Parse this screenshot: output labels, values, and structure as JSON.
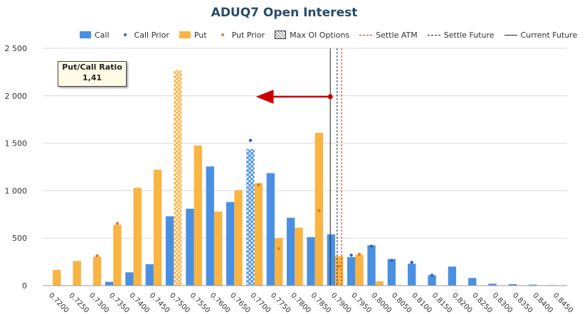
{
  "chart_data": {
    "type": "bar",
    "title": "ADUQ7 Open Interest",
    "categories": [
      "0.7200",
      "0.7250",
      "0.7300",
      "0.7350",
      "0.7400",
      "0.7450",
      "0.7500",
      "0.7550",
      "0.7600",
      "0.7650",
      "0.7700",
      "0.7750",
      "0.7800",
      "0.7850",
      "0.7900",
      "0.7950",
      "0.8000",
      "0.8050",
      "0.8100",
      "0.8150",
      "0.8200",
      "0.8250",
      "0.8300",
      "0.8350",
      "0.8400",
      "0.8450"
    ],
    "ylim": [
      0,
      2500
    ],
    "yticks": [
      0,
      500,
      1000,
      1500,
      2000,
      2500
    ],
    "ytick_labels": [
      "0",
      "500",
      "1 000",
      "1 500",
      "2 000",
      "2 500"
    ],
    "grid": true,
    "series": [
      {
        "name": "Call",
        "kind": "bar",
        "color": "#4a90e2",
        "values": [
          0,
          0,
          0,
          40,
          140,
          225,
          730,
          810,
          1255,
          880,
          1440,
          1185,
          715,
          510,
          540,
          300,
          425,
          280,
          230,
          110,
          200,
          80,
          20,
          15,
          10,
          5
        ]
      },
      {
        "name": "Call Prior",
        "kind": "dot",
        "color": "#2a63c5",
        "values": [
          null,
          null,
          null,
          null,
          null,
          null,
          null,
          null,
          null,
          null,
          1530,
          null,
          null,
          null,
          null,
          320,
          415,
          265,
          245,
          110,
          null,
          null,
          null,
          null,
          null,
          null
        ]
      },
      {
        "name": "Put",
        "kind": "bar",
        "color": "#f9b442",
        "values": [
          165,
          260,
          305,
          640,
          1030,
          1220,
          2270,
          1475,
          780,
          1005,
          1080,
          500,
          610,
          1610,
          310,
          325,
          45,
          5,
          0,
          0,
          0,
          0,
          0,
          0,
          0,
          0
        ]
      },
      {
        "name": "Put Prior",
        "kind": "dot",
        "color": "#d9822b",
        "values": [
          null,
          null,
          315,
          655,
          null,
          null,
          null,
          null,
          null,
          null,
          1060,
          390,
          null,
          790,
          200,
          330,
          null,
          null,
          null,
          null,
          null,
          null,
          null,
          null,
          null,
          null
        ]
      }
    ],
    "max_oi": {
      "call_index": 10,
      "put_index": 6
    },
    "lines": {
      "settle_atm": 0.7916,
      "settle_future": 0.7905,
      "current_future": 0.7888
    },
    "arrow": {
      "from_x": 0.7888,
      "to_x": 0.7708,
      "y": 1990,
      "color": "#cc0000"
    },
    "legend": [
      {
        "label": "Call",
        "kind": "bar",
        "color": "#4a90e2"
      },
      {
        "label": "Call Prior",
        "kind": "dot",
        "color": "#2a63c5"
      },
      {
        "label": "Put",
        "kind": "bar",
        "color": "#f9b442"
      },
      {
        "label": "Put Prior",
        "kind": "dot",
        "color": "#d9822b"
      },
      {
        "label": "Max OI Options",
        "kind": "hatch",
        "color": "#888888"
      },
      {
        "label": "Settle ATM",
        "kind": "dash",
        "color": "#e02020"
      },
      {
        "label": "Settle Future",
        "kind": "dash",
        "color": "#222222"
      },
      {
        "label": "Current Future",
        "kind": "solid",
        "color": "#222222"
      }
    ],
    "annotation": {
      "label": "Put/Call Ratio",
      "value": "1,41"
    }
  }
}
